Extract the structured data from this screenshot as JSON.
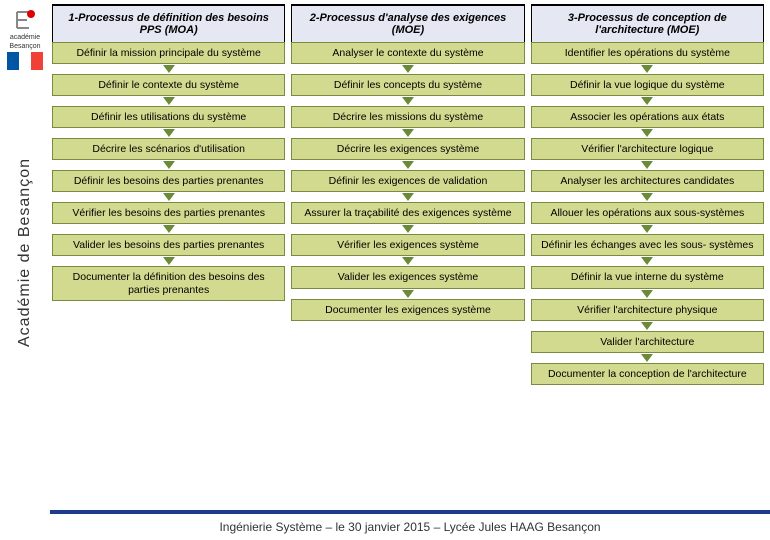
{
  "colors": {
    "header_bg": "#e5e8f2",
    "step_bg": "#d2da8f",
    "step_border": "#7a8a40",
    "arrow_color": "#6a8a3a",
    "footer_bar": "#1e3a8a"
  },
  "logo": {
    "line1": "académie",
    "line2": "Besançon"
  },
  "vertical_label": "Académie de Besançon",
  "columns": [
    {
      "header": "1-Processus de définition des besoins PPS (MOA)",
      "steps": [
        "Définir la mission principale du système",
        "Définir le contexte du système",
        "Définir les utilisations du système",
        "Décrire les scénarios d'utilisation",
        "Définir les besoins des parties prenantes",
        "Vérifier les besoins des parties prenantes",
        "Valider les besoins des parties prenantes",
        "Documenter la définition des besoins des parties prenantes"
      ]
    },
    {
      "header": "2-Processus d'analyse des exigences (MOE)",
      "steps": [
        "Analyser le contexte du système",
        "Définir les concepts du système",
        "Décrire les missions du système",
        "Décrire les exigences système",
        "Définir les exigences de validation",
        "Assurer la traçabilité des exigences système",
        "Vérifier les exigences système",
        "Valider les exigences système",
        "Documenter les exigences système"
      ]
    },
    {
      "header": "3-Processus de conception de l'architecture (MOE)",
      "steps": [
        "Identifier les opérations du système",
        "Définir la vue logique du système",
        "Associer les opérations aux états",
        "Vérifier l'architecture logique",
        "Analyser les architectures candidates",
        "Allouer les opérations aux sous-systèmes",
        "Définir les échanges avec les sous- systèmes",
        "Définir la vue interne du système",
        "Vérifier l'architecture physique",
        "Valider l'architecture",
        "Documenter la conception de l'architecture"
      ]
    }
  ],
  "footer": "Ingénierie Système – le 30 janvier  2015 – Lycée Jules HAAG Besançon"
}
